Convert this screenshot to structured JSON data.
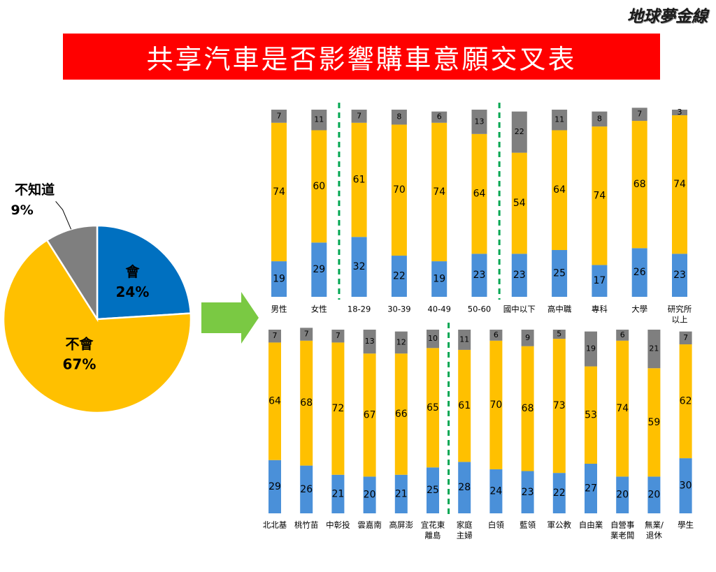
{
  "logo": "地球夢金線",
  "title": "共享汽車是否影響購車意願交叉表",
  "colors": {
    "yes": "#4a90d9",
    "no": "#ffc000",
    "unknown": "#7f7f7f",
    "pie_yes": "#0070c0",
    "arrow": "#7ac943",
    "divider": "#00a651",
    "banner": "#ff0000"
  },
  "chart_data": [
    {
      "type": "pie",
      "slices": [
        {
          "label": "會",
          "value": 24,
          "value_label": "24%"
        },
        {
          "label": "不會",
          "value": 67,
          "value_label": "67%"
        },
        {
          "label": "不知道",
          "value": 9,
          "value_label": "9%"
        }
      ]
    },
    {
      "type": "bar",
      "stacked": true,
      "categories": [
        "男性",
        "女性",
        "18-29",
        "30-39",
        "40-49",
        "50-60",
        "國中以下",
        "高中職",
        "專科",
        "大學",
        "研究所以上"
      ],
      "category_lines": [
        [
          "男性"
        ],
        [
          "女性"
        ],
        [
          "18-29"
        ],
        [
          "30-39"
        ],
        [
          "40-49"
        ],
        [
          "50-60"
        ],
        [
          "國中以下"
        ],
        [
          "高中職"
        ],
        [
          "專科"
        ],
        [
          "大學"
        ],
        [
          "研究所",
          "以上"
        ]
      ],
      "series": [
        {
          "key": "yes",
          "values": [
            19,
            29,
            32,
            22,
            19,
            23,
            23,
            25,
            17,
            26,
            23
          ]
        },
        {
          "key": "no",
          "values": [
            74,
            60,
            61,
            70,
            74,
            64,
            54,
            64,
            74,
            68,
            74
          ]
        },
        {
          "key": "unknown",
          "values": [
            7,
            11,
            7,
            8,
            6,
            13,
            22,
            11,
            8,
            7,
            3
          ]
        }
      ],
      "dividers_after": [
        1,
        5
      ]
    },
    {
      "type": "bar",
      "stacked": true,
      "categories": [
        "北北基",
        "桃竹苗",
        "中彰投",
        "雲嘉南",
        "高屏澎",
        "宜花東離島",
        "家庭主婦",
        "白領",
        "藍領",
        "軍公教",
        "自由業",
        "自營事業老闆",
        "無業/退休",
        "學生"
      ],
      "category_lines": [
        [
          "北北基"
        ],
        [
          "桃竹苗"
        ],
        [
          "中彰投"
        ],
        [
          "雲嘉南"
        ],
        [
          "高屏澎"
        ],
        [
          "宜花東",
          "離島"
        ],
        [
          "家庭",
          "主婦"
        ],
        [
          "白領"
        ],
        [
          "藍領"
        ],
        [
          "軍公教"
        ],
        [
          "自由業"
        ],
        [
          "自營事",
          "業老闆"
        ],
        [
          "無業/",
          "退休"
        ],
        [
          "學生"
        ]
      ],
      "series": [
        {
          "key": "yes",
          "values": [
            29,
            26,
            21,
            20,
            21,
            25,
            28,
            24,
            23,
            22,
            27,
            20,
            20,
            30
          ]
        },
        {
          "key": "no",
          "values": [
            64,
            68,
            72,
            67,
            66,
            65,
            61,
            70,
            68,
            73,
            53,
            74,
            59,
            62
          ]
        },
        {
          "key": "unknown",
          "values": [
            7,
            7,
            7,
            13,
            12,
            10,
            11,
            6,
            9,
            5,
            19,
            6,
            21,
            7
          ]
        }
      ],
      "dividers_after": [
        5
      ]
    }
  ]
}
